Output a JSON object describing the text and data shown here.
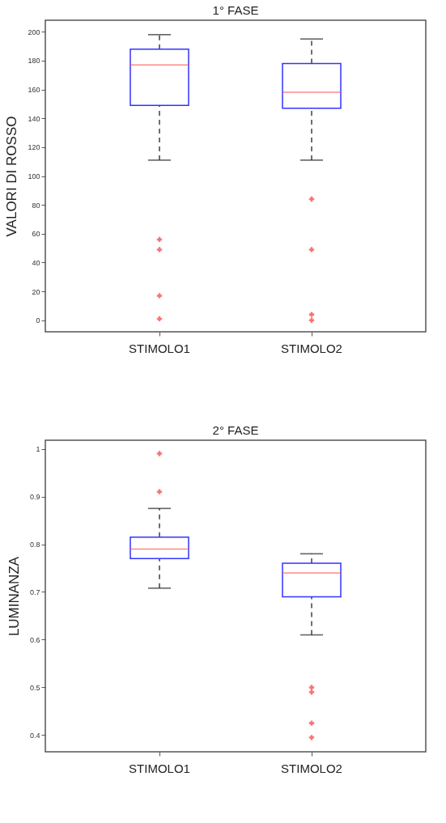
{
  "chart_data": [
    {
      "type": "box",
      "title": "1° FASE",
      "ylabel": "VALORI DI ROSSO",
      "categories": [
        "STIMOLO1",
        "STIMOLO2"
      ],
      "boxes": [
        {
          "low": 111,
          "q1": 149,
          "median": 177,
          "q3": 188,
          "high": 198,
          "outliers": [
            56,
            49,
            17,
            1
          ]
        },
        {
          "low": 111,
          "q1": 147,
          "median": 158,
          "q3": 178,
          "high": 195,
          "outliers": [
            84,
            49,
            4,
            0
          ]
        }
      ],
      "ylim": [
        -8,
        208
      ],
      "yticks": [
        0,
        20,
        40,
        60,
        80,
        100,
        120,
        140,
        160,
        180,
        200
      ],
      "grid": false
    },
    {
      "type": "box",
      "title": "2° FASE",
      "ylabel": "LUMINANZA",
      "categories": [
        "STIMOLO1",
        "STIMOLO2"
      ],
      "boxes": [
        {
          "low": 0.708,
          "q1": 0.77,
          "median": 0.79,
          "q3": 0.815,
          "high": 0.875,
          "outliers": [
            0.99,
            0.91
          ]
        },
        {
          "low": 0.61,
          "q1": 0.69,
          "median": 0.74,
          "q3": 0.76,
          "high": 0.78,
          "outliers": [
            0.5,
            0.49,
            0.425,
            0.395
          ]
        }
      ],
      "ylim": [
        0.365,
        1.018
      ],
      "yticks": [
        0.4,
        0.5,
        0.6,
        0.7,
        0.8,
        0.9,
        1
      ],
      "grid": false
    }
  ]
}
